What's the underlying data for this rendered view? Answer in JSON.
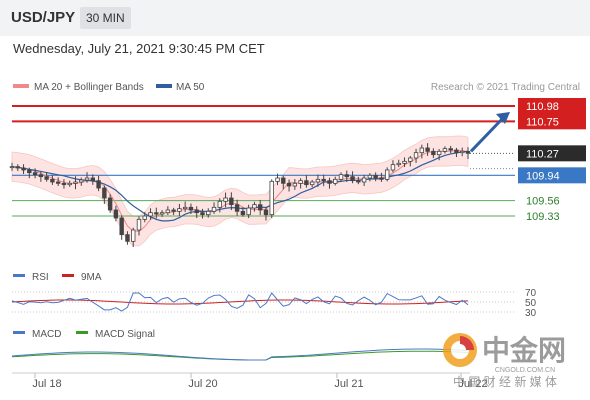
{
  "header": {
    "symbol": "USD/JPY",
    "interval": "30 MIN",
    "datetime": "Wednesday, July 21, 2021 9:30:45 PM CET"
  },
  "legend": {
    "ma20": "MA 20 + Bollinger Bands",
    "ma50": "MA 50",
    "credit": "Research © 2021 Trading Central",
    "rsi": "RSI",
    "rsi_ma": "9MA",
    "macd": "MACD",
    "macd_signal": "MACD Signal"
  },
  "watermark": {
    "title": "中金网",
    "url": "CNGOLD.COM.CN",
    "tagline": "中 国 财 经 新 媒 体"
  },
  "colors": {
    "resistance": "#d31f1f",
    "current": "#2b2b2b",
    "pivot": "#3a78c5",
    "support": "#5aa85a",
    "ma20": "#f08a8a",
    "band": "#fde3e1",
    "ma50": "#2f5fa1",
    "rsi": "#4a78c8",
    "rsi_ma": "#cc2222",
    "macd": "#4a78c8",
    "macd_signal": "#3a9a2a",
    "arrow": "#2f5fa1"
  },
  "chart_data": [
    {
      "type": "candlestick",
      "symbol": "USD/JPY",
      "interval": "30 MIN",
      "x_ticks": [
        "Jul 18",
        "Jul 20",
        "Jul 21",
        "Jul 22"
      ],
      "price_range": [
        108.7,
        111.1
      ],
      "levels": [
        {
          "value": 110.98,
          "label": "110.98",
          "kind": "resistance"
        },
        {
          "value": 110.75,
          "label": "110.75",
          "kind": "resistance"
        },
        {
          "value": 110.27,
          "label": "110.27",
          "kind": "current"
        },
        {
          "value": 109.94,
          "label": "109.94",
          "kind": "pivot"
        },
        {
          "value": 109.56,
          "label": "109.56",
          "kind": "support"
        },
        {
          "value": 109.33,
          "label": "109.33",
          "kind": "support"
        }
      ],
      "series": [
        {
          "name": "MA 20 + Bollinger Bands"
        },
        {
          "name": "MA 50"
        }
      ],
      "close_path": [
        110.07,
        110.05,
        110.02,
        109.98,
        109.95,
        109.92,
        109.88,
        109.84,
        109.82,
        109.8,
        109.82,
        109.84,
        109.87,
        109.9,
        109.86,
        109.75,
        109.6,
        109.42,
        109.3,
        109.05,
        108.95,
        109.12,
        109.28,
        109.33,
        109.38,
        109.36,
        109.38,
        109.42,
        109.4,
        109.44,
        109.46,
        109.42,
        109.38,
        109.35,
        109.4,
        109.46,
        109.55,
        109.6,
        109.5,
        109.4,
        109.35,
        109.45,
        109.5,
        109.42,
        109.35,
        109.85,
        109.9,
        109.82,
        109.78,
        109.82,
        109.86,
        109.8,
        109.84,
        109.88,
        109.86,
        109.82,
        109.88,
        109.95,
        109.92,
        109.86,
        109.84,
        109.9,
        109.94,
        109.9,
        109.88,
        110.02,
        110.1,
        110.12,
        110.15,
        110.2,
        110.28,
        110.35,
        110.3,
        110.25,
        110.3,
        110.34,
        110.32,
        110.28,
        110.3,
        110.27
      ]
    },
    {
      "type": "line",
      "title": "RSI",
      "series": [
        {
          "name": "RSI"
        },
        {
          "name": "9MA"
        }
      ],
      "y_ticks": [
        70,
        50,
        30
      ]
    },
    {
      "type": "line",
      "title": "MACD",
      "series": [
        {
          "name": "MACD"
        },
        {
          "name": "MACD Signal"
        }
      ]
    }
  ]
}
